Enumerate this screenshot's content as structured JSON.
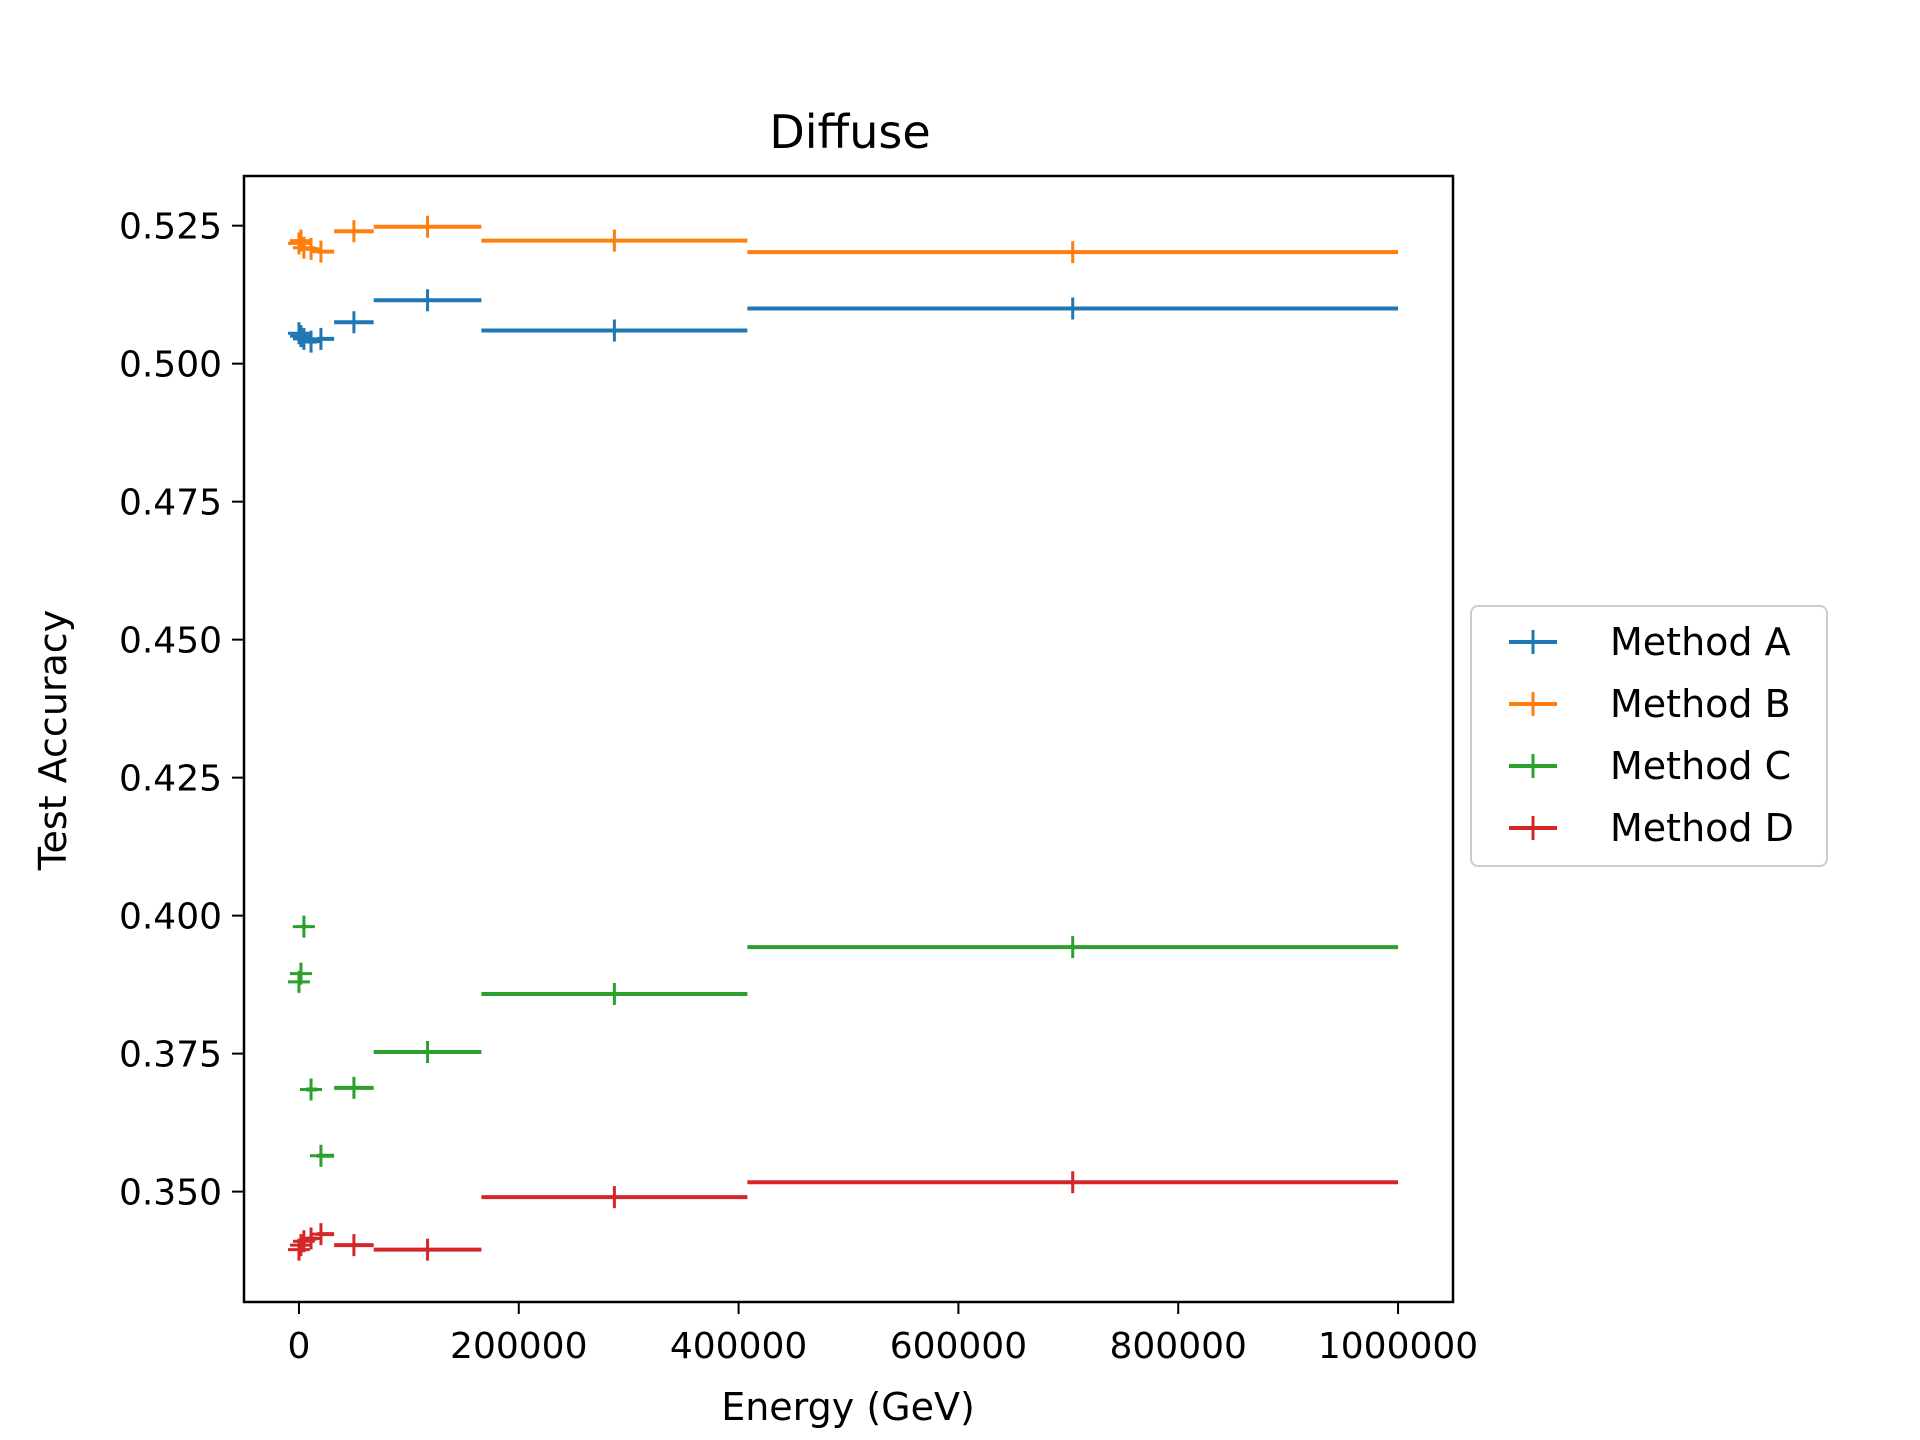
{
  "chart_data": {
    "type": "scatter",
    "title": "Diffuse",
    "xlabel": "Energy (GeV)",
    "ylabel": "Test Accuracy",
    "xlim": [
      -50000,
      1050000
    ],
    "ylim": [
      0.33,
      0.534
    ],
    "xticks": [
      0,
      200000,
      400000,
      600000,
      800000,
      1000000
    ],
    "xtick_labels": [
      "0",
      "200000",
      "400000",
      "600000",
      "800000",
      "1000000"
    ],
    "yticks": [
      0.35,
      0.375,
      0.4,
      0.425,
      0.45,
      0.475,
      0.5,
      0.525
    ],
    "ytick_labels": [
      "0.350",
      "0.375",
      "0.400",
      "0.425",
      "0.450",
      "0.475",
      "0.500",
      "0.525"
    ],
    "grid": false,
    "legend_position": "outside-right",
    "x_bins": [
      [
        -1000,
        1000
      ],
      [
        1000,
        2600
      ],
      [
        2600,
        6500
      ],
      [
        6500,
        16500
      ],
      [
        16500,
        32000
      ],
      [
        32000,
        68000
      ],
      [
        68000,
        166000
      ],
      [
        166000,
        408000
      ],
      [
        408000,
        1000000
      ]
    ],
    "x": [
      0,
      1800,
      4500,
      11000,
      20000,
      50000,
      117000,
      287000,
      704000
    ],
    "series": [
      {
        "name": "Method A",
        "color": "#1f77b4",
        "values": [
          0.5055,
          0.505,
          0.5045,
          0.504,
          0.5045,
          0.5075,
          0.5115,
          0.506,
          0.51
        ]
      },
      {
        "name": "Method B",
        "color": "#ff7f0e",
        "values": [
          0.5218,
          0.5223,
          0.521,
          0.5208,
          0.5203,
          0.524,
          0.5248,
          0.5223,
          0.5202
        ]
      },
      {
        "name": "Method C",
        "color": "#2ca02c",
        "values": [
          0.388,
          0.3895,
          0.398,
          0.3685,
          0.3565,
          0.3688,
          0.3753,
          0.3858,
          0.3943
        ]
      },
      {
        "name": "Method D",
        "color": "#d62728",
        "values": [
          0.3395,
          0.3403,
          0.341,
          0.3415,
          0.3423,
          0.3403,
          0.3395,
          0.349,
          0.3517
        ]
      }
    ]
  }
}
